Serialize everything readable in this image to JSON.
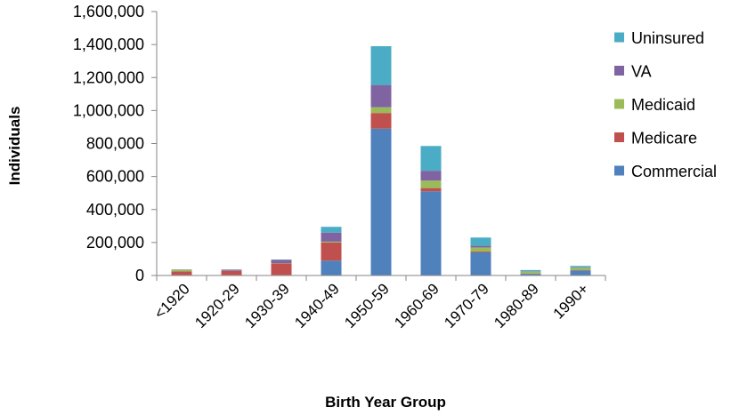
{
  "chart_data": {
    "type": "bar",
    "stacked": true,
    "categories": [
      "<1920",
      "1920-29",
      "1930-39",
      "1940-49",
      "1950-59",
      "1960-69",
      "1970-79",
      "1980-89",
      "1990+"
    ],
    "series": [
      {
        "name": "Commercial",
        "color": "#4F81BD",
        "values": [
          3000,
          3000,
          3000,
          90000,
          890000,
          510000,
          140000,
          10000,
          30000
        ]
      },
      {
        "name": "Medicare",
        "color": "#C0504D",
        "values": [
          22000,
          25000,
          70000,
          110000,
          95000,
          20000,
          5000,
          2000,
          2000
        ]
      },
      {
        "name": "Medicaid",
        "color": "#9BBB59",
        "values": [
          10000,
          1000,
          2000,
          5000,
          35000,
          45000,
          25000,
          12000,
          15000
        ]
      },
      {
        "name": "VA",
        "color": "#8064A2",
        "values": [
          1000,
          6000,
          20000,
          55000,
          135000,
          60000,
          10000,
          2000,
          3000
        ]
      },
      {
        "name": "Uninsured",
        "color": "#4BACC6",
        "values": [
          1000,
          1000,
          2000,
          35000,
          235000,
          150000,
          50000,
          7000,
          8000
        ]
      }
    ],
    "title": "",
    "xlabel": "Birth Year Group",
    "ylabel": "Individuals",
    "ylim": [
      0,
      1600000
    ],
    "yticks": [
      "0",
      "200,000",
      "400,000",
      "600,000",
      "800,000",
      "1,000,000",
      "1,200,000",
      "1,400,000",
      "1,600,000"
    ],
    "legend_position": "right",
    "legend_order": [
      "Uninsured",
      "VA",
      "Medicaid",
      "Medicare",
      "Commercial"
    ],
    "grid": false
  }
}
